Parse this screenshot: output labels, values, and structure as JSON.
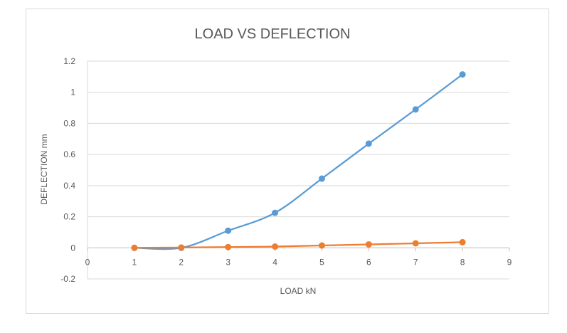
{
  "chart_data": {
    "type": "line",
    "title": "LOAD VS DEFLECTION",
    "xlabel": "LOAD kN",
    "ylabel": "DEFLECTION  mm",
    "xlim": [
      0,
      9
    ],
    "ylim": [
      -0.2,
      1.2
    ],
    "xticks": [
      "0",
      "1",
      "2",
      "3",
      "4",
      "5",
      "6",
      "7",
      "8",
      "9"
    ],
    "yticks": [
      "-0.2",
      "0",
      "0.2",
      "0.4",
      "0.6",
      "0.8",
      "1",
      "1.2"
    ],
    "grid": true,
    "legend": "none",
    "series": [
      {
        "color": "#5b9bd5",
        "x": [
          1,
          2,
          3,
          4,
          5,
          6,
          7,
          8
        ],
        "values": [
          0.0,
          0.0,
          0.11,
          0.225,
          0.445,
          0.67,
          0.89,
          1.115
        ]
      },
      {
        "color": "#ed7d31",
        "x": [
          1,
          2,
          3,
          4,
          5,
          6,
          7,
          8
        ],
        "values": [
          0.0,
          0.002,
          0.005,
          0.008,
          0.015,
          0.022,
          0.029,
          0.036
        ]
      }
    ]
  }
}
